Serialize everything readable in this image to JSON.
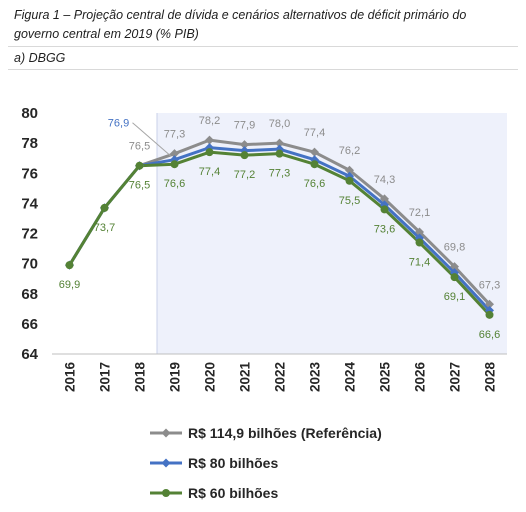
{
  "figure": {
    "caption": "Figura 1 – Projeção central de dívida e cenários alternativos de déficit primário do governo central em 2019 (% PIB)",
    "panel_label": "a) DBGG"
  },
  "chart_data": {
    "type": "line",
    "title": "",
    "xlabel": "",
    "ylabel": "",
    "categories": [
      "2016",
      "2017",
      "2018",
      "2019",
      "2020",
      "2021",
      "2022",
      "2023",
      "2024",
      "2025",
      "2026",
      "2027",
      "2028"
    ],
    "ylim": [
      64,
      80
    ],
    "yticks": [
      64,
      66,
      68,
      70,
      72,
      74,
      76,
      78,
      80
    ],
    "grid": false,
    "highlight_region": {
      "from": "2019",
      "to": "2028",
      "color": "#eef1fb"
    },
    "legend_position": "bottom",
    "series": [
      {
        "name": "R$ 114,9 bilhões (Referência)",
        "color": "#8c8c8c",
        "marker": "diamond",
        "values": [
          69.9,
          73.7,
          76.5,
          77.3,
          78.2,
          77.9,
          78.0,
          77.4,
          76.2,
          74.3,
          72.1,
          69.8,
          67.3
        ],
        "labels": [
          "",
          "",
          "76,5",
          "77,3",
          "78,2",
          "77,9",
          "78,0",
          "77,4",
          "76,2",
          "74,3",
          "72,1",
          "69,8",
          "67,3"
        ]
      },
      {
        "name": "R$ 80 bilhões",
        "color": "#4472c4",
        "marker": "diamond",
        "values": [
          69.9,
          73.7,
          76.5,
          76.9,
          77.7,
          77.5,
          77.6,
          76.9,
          75.8,
          73.9,
          71.7,
          69.4,
          66.9
        ],
        "labels": [
          "",
          "",
          "",
          "76,9",
          "",
          "",
          "",
          "",
          "",
          "",
          "",
          "",
          ""
        ]
      },
      {
        "name": "R$ 60 bilhões",
        "color": "#548235",
        "marker": "circle",
        "values": [
          69.9,
          73.7,
          76.5,
          76.6,
          77.4,
          77.2,
          77.3,
          76.6,
          75.5,
          73.6,
          71.4,
          69.1,
          66.6
        ],
        "labels": [
          "69,9",
          "73,7",
          "76,5",
          "76,6",
          "77,4",
          "77,2",
          "77,3",
          "76,6",
          "75,5",
          "73,6",
          "71,4",
          "69,1",
          "66,6"
        ]
      }
    ]
  }
}
